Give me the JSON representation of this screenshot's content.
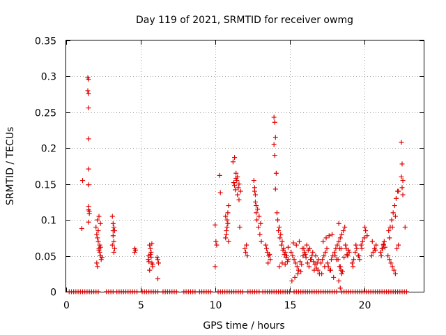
{
  "chart_data": {
    "type": "scatter",
    "title": "Day 119 of 2021, SRMTID for receiver owmg",
    "xlabel": "GPS time / hours",
    "ylabel": "SRMTID / TECUs",
    "xlim": [
      0,
      24
    ],
    "ylim": [
      0,
      0.35
    ],
    "x_ticks": [
      0,
      5,
      10,
      15,
      20
    ],
    "x_tick_labels": [
      "0",
      "5",
      "10",
      "15",
      "20"
    ],
    "y_ticks": [
      0,
      0.05,
      0.1,
      0.15,
      0.2,
      0.25,
      0.3,
      0.35
    ],
    "y_tick_labels": [
      "0",
      "0.05",
      "0.1",
      "0.15",
      "0.2",
      "0.25",
      "0.3",
      "0.35"
    ],
    "grid": true,
    "marker": "+",
    "color": "#e00000",
    "series": [
      {
        "name": "SRMTID",
        "x": [
          1.1,
          1.05,
          1.45,
          1.5,
          1.45,
          1.5,
          1.5,
          1.5,
          1.5,
          1.5,
          1.5,
          1.5,
          1.55,
          1.55,
          1.5,
          2.0,
          2.05,
          2.1,
          2.15,
          2.2,
          2.25,
          2.3,
          2.35,
          2.1,
          2.2,
          2.3,
          2.25,
          2.15,
          2.05,
          2.1,
          2.2,
          2.3,
          2.4,
          3.1,
          3.15,
          3.2,
          3.25,
          3.15,
          3.2,
          3.1,
          3.25,
          3.2,
          3.15,
          4.6,
          4.65,
          4.6,
          5.5,
          5.55,
          5.6,
          5.65,
          5.7,
          5.75,
          5.8,
          5.6,
          5.7,
          5.65,
          5.75,
          5.55,
          5.8,
          6.1,
          6.15,
          6.2,
          6.15,
          10.0,
          10.05,
          10.1,
          10.0,
          10.3,
          10.35,
          10.7,
          10.75,
          10.8,
          10.85,
          10.9,
          10.7,
          10.8,
          10.75,
          10.9,
          10.85,
          11.2,
          11.3,
          11.4,
          11.5,
          11.6,
          11.7,
          11.45,
          11.55,
          11.35,
          11.25,
          11.65,
          11.5,
          11.6,
          11.4,
          11.3,
          12.0,
          12.05,
          12.1,
          12.15,
          12.6,
          12.65,
          12.7,
          12.75,
          12.8,
          12.9,
          13.0,
          13.1,
          12.7,
          12.85,
          12.95,
          13.05,
          12.65,
          12.75,
          13.4,
          13.5,
          13.6,
          13.7,
          13.45,
          13.55,
          13.65,
          13.95,
          14.0,
          14.05,
          13.95,
          14.0,
          14.1,
          14.05,
          14.15,
          14.2,
          14.3,
          14.4,
          14.5,
          14.6,
          14.7,
          14.8,
          14.9,
          14.25,
          14.35,
          14.45,
          14.55,
          14.65,
          14.75,
          14.85,
          14.3,
          14.5,
          14.7,
          14.9,
          15.1,
          15.2,
          15.3,
          15.4,
          15.5,
          15.6,
          15.7,
          15.8,
          15.9,
          16.0,
          16.1,
          16.2,
          16.3,
          16.4,
          16.5,
          16.6,
          16.7,
          16.8,
          16.9,
          17.0,
          15.15,
          15.35,
          15.55,
          15.75,
          15.95,
          16.15,
          16.35,
          16.55,
          16.75,
          16.95,
          15.25,
          15.45,
          15.65,
          15.85,
          16.05,
          16.25,
          16.45,
          16.65,
          16.85,
          17.1,
          17.2,
          17.3,
          17.4,
          17.5,
          17.6,
          17.7,
          17.8,
          17.9,
          18.0,
          18.1,
          18.2,
          18.3,
          18.4,
          18.5,
          18.6,
          18.7,
          18.8,
          18.9,
          19.0,
          17.15,
          17.35,
          17.55,
          17.75,
          17.95,
          18.15,
          18.35,
          18.55,
          18.75,
          18.95,
          17.25,
          17.45,
          17.65,
          17.85,
          18.05,
          18.25,
          18.45,
          18.65,
          18.85,
          18.3,
          18.35,
          18.4,
          18.45,
          18.5,
          18.3,
          18.4,
          19.2,
          19.3,
          19.4,
          19.5,
          19.6,
          19.7,
          19.8,
          19.9,
          20.0,
          20.1,
          20.2,
          19.25,
          19.45,
          19.65,
          19.85,
          20.05,
          20.5,
          20.6,
          20.7,
          20.8,
          20.55,
          20.75,
          21.1,
          21.2,
          21.3,
          21.4,
          21.25,
          21.35,
          21.15,
          21.3,
          21.6,
          21.7,
          21.8,
          21.9,
          22.0,
          22.1,
          22.2,
          22.3,
          21.65,
          21.75,
          21.85,
          21.95,
          22.05,
          22.15,
          22.25,
          21.7,
          21.9,
          22.1,
          22.3,
          22.5,
          22.55,
          22.6,
          22.5,
          22.55,
          22.6,
          22.75
        ],
        "y": [
          0.155,
          0.088,
          0.298,
          0.296,
          0.28,
          0.276,
          0.256,
          0.213,
          0.171,
          0.149,
          0.119,
          0.114,
          0.109,
          0.112,
          0.097,
          0.09,
          0.08,
          0.075,
          0.07,
          0.06,
          0.055,
          0.05,
          0.045,
          0.1,
          0.105,
          0.095,
          0.065,
          0.085,
          0.04,
          0.035,
          0.058,
          0.062,
          0.048,
          0.105,
          0.095,
          0.09,
          0.085,
          0.078,
          0.07,
          0.065,
          0.06,
          0.055,
          0.085,
          0.06,
          0.058,
          0.055,
          0.045,
          0.05,
          0.065,
          0.06,
          0.055,
          0.04,
          0.035,
          0.03,
          0.048,
          0.052,
          0.067,
          0.042,
          0.038,
          0.048,
          0.045,
          0.04,
          0.018,
          0.035,
          0.07,
          0.065,
          0.093,
          0.162,
          0.138,
          0.075,
          0.085,
          0.1,
          0.11,
          0.12,
          0.105,
          0.09,
          0.08,
          0.07,
          0.095,
          0.181,
          0.187,
          0.165,
          0.16,
          0.15,
          0.14,
          0.155,
          0.145,
          0.142,
          0.152,
          0.09,
          0.135,
          0.128,
          0.158,
          0.148,
          0.06,
          0.055,
          0.065,
          0.05,
          0.155,
          0.14,
          0.125,
          0.11,
          0.1,
          0.09,
          0.08,
          0.07,
          0.135,
          0.115,
          0.105,
          0.095,
          0.145,
          0.12,
          0.065,
          0.055,
          0.05,
          0.045,
          0.06,
          0.04,
          0.052,
          0.243,
          0.236,
          0.215,
          0.205,
          0.19,
          0.165,
          0.143,
          0.11,
          0.1,
          0.09,
          0.08,
          0.07,
          0.06,
          0.055,
          0.05,
          0.045,
          0.085,
          0.075,
          0.065,
          0.058,
          0.052,
          0.048,
          0.042,
          0.035,
          0.04,
          0.038,
          0.062,
          0.055,
          0.05,
          0.045,
          0.04,
          0.035,
          0.03,
          0.042,
          0.038,
          0.05,
          0.055,
          0.048,
          0.04,
          0.035,
          0.045,
          0.05,
          0.042,
          0.038,
          0.033,
          0.03,
          0.025,
          0.015,
          0.02,
          0.025,
          0.028,
          0.06,
          0.065,
          0.06,
          0.055,
          0.05,
          0.045,
          0.068,
          0.065,
          0.07,
          0.06,
          0.052,
          0.058,
          0.045,
          0.03,
          0.04,
          0.04,
          0.045,
          0.05,
          0.055,
          0.06,
          0.035,
          0.03,
          0.045,
          0.05,
          0.055,
          0.06,
          0.065,
          0.07,
          0.075,
          0.08,
          0.085,
          0.09,
          0.06,
          0.05,
          0.055,
          0.025,
          0.035,
          0.04,
          0.03,
          0.02,
          0.045,
          0.035,
          0.028,
          0.065,
          0.058,
          0.07,
          0.075,
          0.078,
          0.08,
          0.05,
          0.045,
          0.06,
          0.048,
          0.052,
          0.095,
          0.06,
          0.035,
          0.03,
          0.025,
          0.015,
          0.005,
          0.04,
          0.045,
          0.055,
          0.06,
          0.05,
          0.045,
          0.065,
          0.07,
          0.075,
          0.085,
          0.078,
          0.035,
          0.065,
          0.05,
          0.06,
          0.09,
          0.05,
          0.055,
          0.06,
          0.065,
          0.07,
          0.058,
          0.055,
          0.06,
          0.065,
          0.062,
          0.06,
          0.07,
          0.05,
          0.066,
          0.05,
          0.045,
          0.04,
          0.035,
          0.03,
          0.025,
          0.06,
          0.065,
          0.085,
          0.09,
          0.1,
          0.11,
          0.12,
          0.13,
          0.14,
          0.075,
          0.09,
          0.105,
          0.14,
          0.208,
          0.178,
          0.155,
          0.16,
          0.145,
          0.135,
          0.09
        ],
        "zero_x": [
          0.2,
          0.35,
          0.5,
          0.65,
          0.8,
          0.95,
          1.1,
          1.25,
          1.4,
          1.55,
          1.7,
          1.85,
          2.0,
          2.15,
          2.7,
          2.85,
          3.0,
          3.15,
          3.4,
          3.55,
          3.7,
          3.85,
          4.0,
          4.15,
          4.3,
          4.45,
          4.6,
          4.75,
          5.1,
          5.25,
          5.4,
          5.55,
          5.7,
          5.85,
          6.0,
          6.15,
          6.5,
          6.65,
          6.8,
          6.95,
          7.1,
          7.25,
          7.4,
          7.9,
          8.05,
          8.2,
          8.35,
          8.5,
          8.65,
          8.95,
          9.1,
          9.25,
          9.4,
          9.55,
          9.7,
          10.2,
          10.35,
          10.5,
          10.65,
          10.8,
          10.95,
          11.1,
          11.25,
          11.4,
          11.55,
          11.7,
          11.85,
          12.2,
          12.35,
          12.5,
          12.65,
          12.8,
          12.95,
          13.2,
          13.35,
          13.5,
          13.65,
          13.8,
          13.95,
          14.1,
          14.25,
          14.4,
          14.55,
          14.7,
          14.85,
          15.0,
          15.3,
          15.45,
          15.6,
          15.75,
          15.9,
          16.05,
          16.2,
          16.35,
          16.5,
          16.65,
          16.8,
          16.95,
          17.1,
          17.25,
          17.4,
          17.55,
          17.7,
          17.85,
          18.0,
          18.15,
          18.5,
          18.65,
          18.8,
          18.95,
          19.1,
          19.25,
          19.4,
          19.55,
          19.7,
          19.85,
          20.0,
          20.15,
          20.3,
          20.45,
          20.6,
          20.75,
          20.9,
          21.05,
          21.2,
          21.35,
          21.5,
          21.65,
          21.8,
          21.95,
          22.1,
          22.25,
          22.4,
          22.55,
          22.7,
          22.85
        ]
      }
    ]
  }
}
